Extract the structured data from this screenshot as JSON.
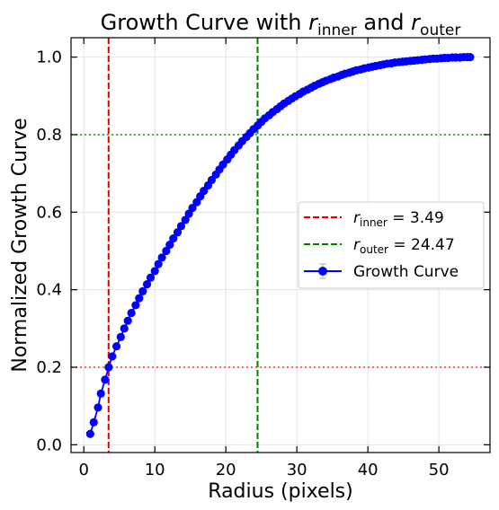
{
  "chart_data": {
    "type": "line",
    "title": {
      "prefix": "Growth Curve with ",
      "r1_base": "r",
      "r1_sub": "inner",
      "middle": " and ",
      "r2_base": "r",
      "r2_sub": "outer"
    },
    "xlabel": "Radius (pixels)",
    "ylabel": "Normalized Growth Curve",
    "xlim": [
      -1.8,
      57.2
    ],
    "ylim": [
      -0.02,
      1.05
    ],
    "xticks": [
      0,
      10,
      20,
      30,
      40,
      50
    ],
    "yticks": [
      0.0,
      0.2,
      0.4,
      0.6,
      0.8,
      1.0
    ],
    "xtick_labels": [
      "0",
      "10",
      "20",
      "30",
      "40",
      "50"
    ],
    "ytick_labels": [
      "0.0",
      "0.2",
      "0.4",
      "0.6",
      "0.8",
      "1.0"
    ],
    "grid": true,
    "legend_position": "center-right",
    "vlines": [
      {
        "x": 3.49,
        "color": "#e00000",
        "style": "dashed",
        "label_base": "r",
        "label_sub": "inner",
        "label_value": " = 3.49"
      },
      {
        "x": 24.47,
        "color": "#008000",
        "style": "dashed",
        "label_base": "r",
        "label_sub": "outer",
        "label_value": " = 24.47"
      }
    ],
    "hlines": [
      {
        "y": 0.2,
        "color": "#ff3030",
        "style": "dotted"
      },
      {
        "y": 0.8,
        "color": "#20a020",
        "style": "dotted"
      }
    ],
    "series": [
      {
        "name": "Growth Curve",
        "color": "#0000ff",
        "x": [
          0.9,
          1.4,
          2.0,
          2.4,
          3.0,
          3.5,
          4.0,
          4.6,
          5.2,
          5.7,
          6.2,
          6.7,
          7.3,
          7.8,
          8.3,
          8.9,
          9.4,
          10.0,
          10.5,
          11.0,
          11.6,
          12.1,
          12.6,
          13.2,
          13.7,
          14.3,
          14.8,
          15.3,
          15.9,
          16.4,
          16.9,
          17.5,
          18.0,
          18.6,
          19.1,
          19.6,
          20.2,
          20.7,
          21.2,
          21.8,
          22.3,
          22.9,
          23.4,
          23.9,
          24.5,
          25.0,
          25.5,
          26.1,
          26.6,
          27.2,
          27.7,
          28.2,
          28.8,
          29.3,
          29.8,
          30.4,
          30.9,
          31.5,
          32.0,
          32.5,
          33.1,
          33.6,
          34.1,
          34.7,
          35.2,
          35.8,
          36.3,
          36.8,
          37.4,
          37.9,
          38.4,
          39.0,
          39.5,
          40.1,
          40.6,
          41.1,
          41.7,
          42.2,
          42.7,
          43.3,
          43.8,
          44.4,
          44.9,
          45.4,
          46.0,
          46.5,
          47.0,
          47.6,
          48.1,
          48.7,
          49.2,
          49.7,
          50.3,
          50.8,
          51.3,
          51.9,
          52.4,
          53.0,
          53.5,
          54.0,
          54.4
        ],
        "y": [
          0.028,
          0.058,
          0.096,
          0.132,
          0.168,
          0.2,
          0.228,
          0.254,
          0.278,
          0.3,
          0.32,
          0.34,
          0.36,
          0.378,
          0.396,
          0.414,
          0.431,
          0.448,
          0.466,
          0.483,
          0.5,
          0.516,
          0.532,
          0.548,
          0.564,
          0.58,
          0.596,
          0.611,
          0.626,
          0.641,
          0.655,
          0.669,
          0.683,
          0.697,
          0.71,
          0.723,
          0.736,
          0.748,
          0.76,
          0.772,
          0.783,
          0.794,
          0.804,
          0.814,
          0.824,
          0.833,
          0.842,
          0.85,
          0.858,
          0.866,
          0.873,
          0.88,
          0.887,
          0.893,
          0.899,
          0.905,
          0.911,
          0.916,
          0.921,
          0.926,
          0.931,
          0.935,
          0.939,
          0.943,
          0.947,
          0.95,
          0.954,
          0.957,
          0.96,
          0.963,
          0.966,
          0.968,
          0.971,
          0.973,
          0.975,
          0.977,
          0.979,
          0.981,
          0.983,
          0.984,
          0.986,
          0.987,
          0.988,
          0.989,
          0.99,
          0.991,
          0.992,
          0.993,
          0.994,
          0.995,
          0.996,
          0.996,
          0.997,
          0.998,
          0.998,
          0.999,
          0.999,
          0.999,
          1.0,
          1.0,
          1.0
        ]
      }
    ]
  }
}
